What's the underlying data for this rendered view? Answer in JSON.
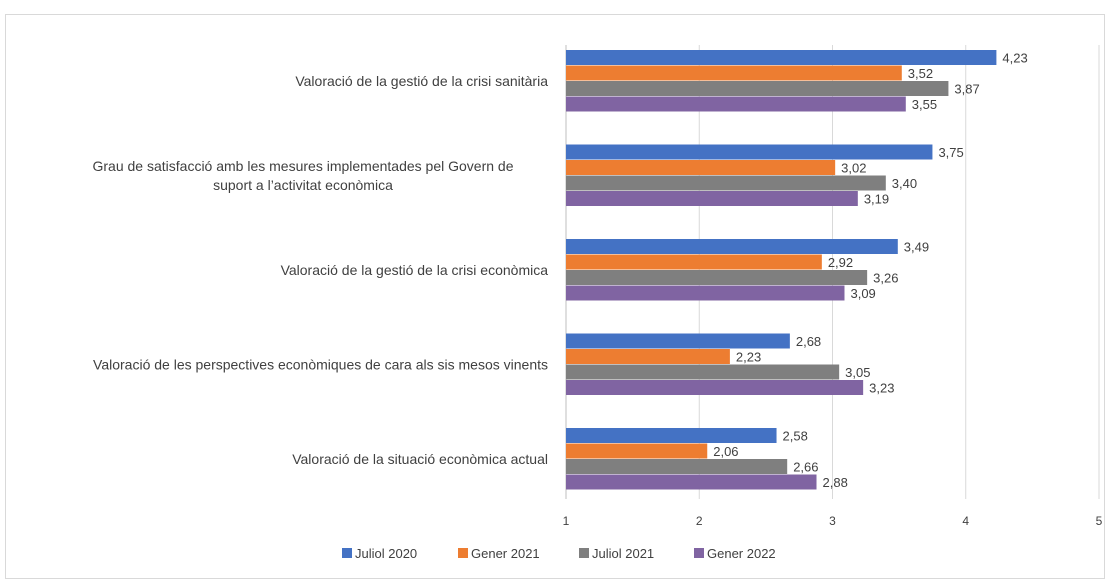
{
  "chart_data": {
    "type": "bar",
    "orientation": "horizontal",
    "categories": [
      "Valoració de la gestió de la crisi sanitària",
      "Grau de satisfacció amb les mesures implementades pel Govern de suport a l’activitat econòmica",
      "Valoració de la gestió de la crisi econòmica",
      "Valoració de les perspectives econòmiques de cara als sis mesos vinents",
      "Valoració de la situació econòmica actual"
    ],
    "category_lines": [
      [
        "Valoració de la gestió de la crisi sanitària"
      ],
      [
        "Grau de satisfacció amb les mesures implementades pel Govern de",
        "suport a l’activitat econòmica"
      ],
      [
        "Valoració de la gestió de la crisi econòmica"
      ],
      [
        "Valoració de les perspectives econòmiques de cara als sis mesos vinents"
      ],
      [
        "Valoració de la situació econòmica actual"
      ]
    ],
    "series": [
      {
        "name": "Juliol 2020",
        "color": "#4472c4",
        "values": [
          4.23,
          3.75,
          3.49,
          2.68,
          2.58
        ],
        "labels": [
          "4,23",
          "3,75",
          "3,49",
          "2,68",
          "2,58"
        ]
      },
      {
        "name": "Gener 2021",
        "color": "#ed7d31",
        "values": [
          3.52,
          3.02,
          2.92,
          2.23,
          2.06
        ],
        "labels": [
          "3,52",
          "3,02",
          "2,92",
          "2,23",
          "2,06"
        ]
      },
      {
        "name": "Juliol 2021",
        "color": "#7f7f7f",
        "values": [
          3.87,
          3.4,
          3.26,
          3.05,
          2.66
        ],
        "labels": [
          "3,87",
          "3,40",
          "3,26",
          "3,05",
          "2,66"
        ]
      },
      {
        "name": "Gener 2022",
        "color": "#8064a2",
        "values": [
          3.55,
          3.19,
          3.09,
          3.23,
          2.88
        ],
        "labels": [
          "3,55",
          "3,19",
          "3,09",
          "3,23",
          "2,88"
        ]
      }
    ],
    "xlim": [
      1,
      5
    ],
    "xticks": [
      "1",
      "2",
      "3",
      "4",
      "5"
    ],
    "grid": true,
    "legend_position": "bottom"
  }
}
